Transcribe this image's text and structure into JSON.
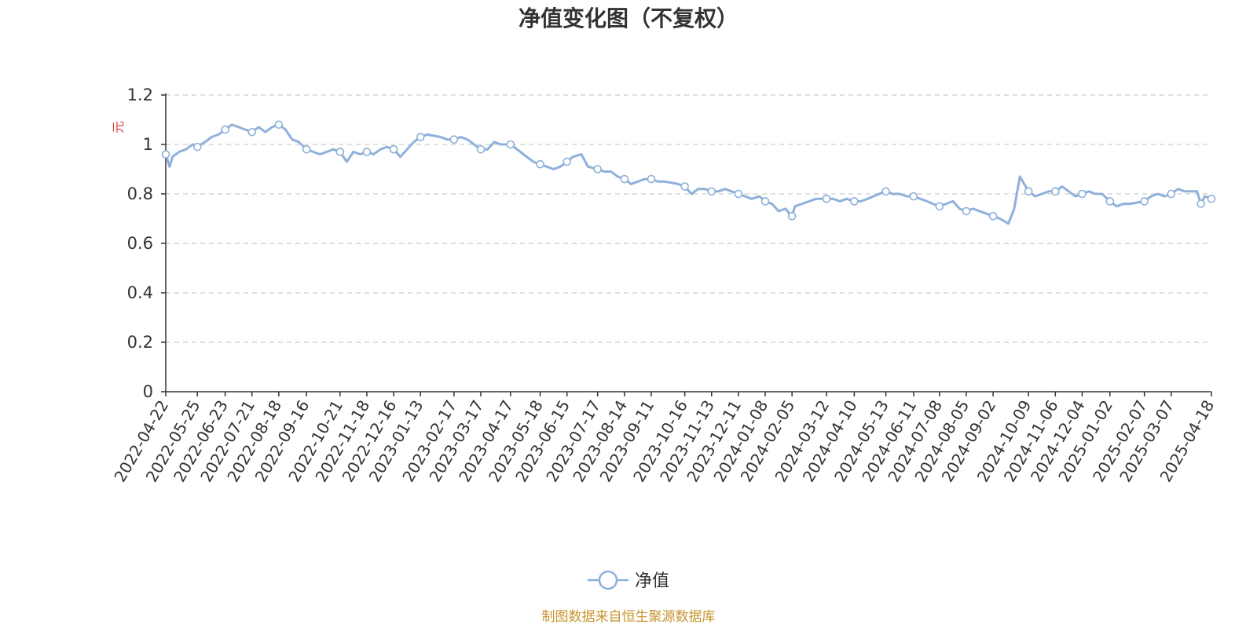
{
  "colors": {
    "line": "#8eb0db",
    "marker_fill": "#ffffff",
    "axis": "#333333",
    "grid": "#cccccc",
    "unit": "#e03c3c",
    "source": "#c8962e"
  },
  "chart_data": {
    "type": "line",
    "title": "净值变化图（不复权）",
    "ylabel": "元",
    "ylim": [
      0,
      1.2
    ],
    "yticks": [
      "0",
      "0.2",
      "0.4",
      "0.6",
      "0.8",
      "1",
      "1.2"
    ],
    "grid": true,
    "legend_position": "bottom-center",
    "xlim": [
      "2022-04-22",
      "2025-04-18"
    ],
    "x_ticks": [
      "2022-04-22",
      "2022-05-25",
      "2022-06-23",
      "2022-07-21",
      "2022-08-18",
      "2022-09-16",
      "2022-10-21",
      "2022-11-18",
      "2022-12-16",
      "2023-01-13",
      "2023-02-17",
      "2023-03-17",
      "2023-04-17",
      "2023-05-18",
      "2023-06-15",
      "2023-07-17",
      "2023-08-14",
      "2023-09-11",
      "2023-10-16",
      "2023-11-13",
      "2023-12-11",
      "2024-01-08",
      "2024-02-05",
      "2024-03-12",
      "2024-04-10",
      "2024-05-13",
      "2024-06-11",
      "2024-07-08",
      "2024-08-05",
      "2024-09-02",
      "2024-10-09",
      "2024-11-06",
      "2024-12-04",
      "2025-01-02",
      "2025-02-07",
      "2025-03-07",
      "2025-04-18"
    ],
    "series": [
      {
        "name": "净值",
        "points": [
          {
            "x": "2022-04-22",
            "y": 0.96
          },
          {
            "x": "2022-04-26",
            "y": 0.91
          },
          {
            "x": "2022-04-29",
            "y": 0.95
          },
          {
            "x": "2022-05-06",
            "y": 0.97
          },
          {
            "x": "2022-05-13",
            "y": 0.98
          },
          {
            "x": "2022-05-20",
            "y": 1.0
          },
          {
            "x": "2022-05-25",
            "y": 0.99
          },
          {
            "x": "2022-06-02",
            "y": 1.01
          },
          {
            "x": "2022-06-09",
            "y": 1.03
          },
          {
            "x": "2022-06-16",
            "y": 1.04
          },
          {
            "x": "2022-06-23",
            "y": 1.06
          },
          {
            "x": "2022-06-30",
            "y": 1.08
          },
          {
            "x": "2022-07-07",
            "y": 1.07
          },
          {
            "x": "2022-07-14",
            "y": 1.06
          },
          {
            "x": "2022-07-21",
            "y": 1.05
          },
          {
            "x": "2022-07-28",
            "y": 1.07
          },
          {
            "x": "2022-08-04",
            "y": 1.05
          },
          {
            "x": "2022-08-11",
            "y": 1.07
          },
          {
            "x": "2022-08-18",
            "y": 1.08
          },
          {
            "x": "2022-08-25",
            "y": 1.06
          },
          {
            "x": "2022-09-01",
            "y": 1.02
          },
          {
            "x": "2022-09-08",
            "y": 1.01
          },
          {
            "x": "2022-09-16",
            "y": 0.98
          },
          {
            "x": "2022-09-23",
            "y": 0.97
          },
          {
            "x": "2022-09-30",
            "y": 0.96
          },
          {
            "x": "2022-10-14",
            "y": 0.98
          },
          {
            "x": "2022-10-21",
            "y": 0.97
          },
          {
            "x": "2022-10-28",
            "y": 0.93
          },
          {
            "x": "2022-11-04",
            "y": 0.97
          },
          {
            "x": "2022-11-11",
            "y": 0.96
          },
          {
            "x": "2022-11-18",
            "y": 0.97
          },
          {
            "x": "2022-11-25",
            "y": 0.96
          },
          {
            "x": "2022-12-02",
            "y": 0.98
          },
          {
            "x": "2022-12-09",
            "y": 0.99
          },
          {
            "x": "2022-12-16",
            "y": 0.98
          },
          {
            "x": "2022-12-23",
            "y": 0.95
          },
          {
            "x": "2022-12-30",
            "y": 0.98
          },
          {
            "x": "2023-01-06",
            "y": 1.01
          },
          {
            "x": "2023-01-13",
            "y": 1.03
          },
          {
            "x": "2023-01-20",
            "y": 1.04
          },
          {
            "x": "2023-02-03",
            "y": 1.03
          },
          {
            "x": "2023-02-10",
            "y": 1.02
          },
          {
            "x": "2023-02-17",
            "y": 1.02
          },
          {
            "x": "2023-02-24",
            "y": 1.03
          },
          {
            "x": "2023-03-03",
            "y": 1.02
          },
          {
            "x": "2023-03-10",
            "y": 1.0
          },
          {
            "x": "2023-03-17",
            "y": 0.98
          },
          {
            "x": "2023-03-24",
            "y": 0.98
          },
          {
            "x": "2023-03-31",
            "y": 1.01
          },
          {
            "x": "2023-04-07",
            "y": 1.0
          },
          {
            "x": "2023-04-17",
            "y": 1.0
          },
          {
            "x": "2023-04-24",
            "y": 0.98
          },
          {
            "x": "2023-05-04",
            "y": 0.95
          },
          {
            "x": "2023-05-11",
            "y": 0.93
          },
          {
            "x": "2023-05-18",
            "y": 0.92
          },
          {
            "x": "2023-05-25",
            "y": 0.91
          },
          {
            "x": "2023-06-01",
            "y": 0.9
          },
          {
            "x": "2023-06-08",
            "y": 0.91
          },
          {
            "x": "2023-06-15",
            "y": 0.93
          },
          {
            "x": "2023-06-21",
            "y": 0.95
          },
          {
            "x": "2023-06-30",
            "y": 0.96
          },
          {
            "x": "2023-07-07",
            "y": 0.91
          },
          {
            "x": "2023-07-17",
            "y": 0.9
          },
          {
            "x": "2023-07-24",
            "y": 0.89
          },
          {
            "x": "2023-07-31",
            "y": 0.89
          },
          {
            "x": "2023-08-07",
            "y": 0.87
          },
          {
            "x": "2023-08-14",
            "y": 0.86
          },
          {
            "x": "2023-08-21",
            "y": 0.84
          },
          {
            "x": "2023-08-28",
            "y": 0.85
          },
          {
            "x": "2023-09-04",
            "y": 0.86
          },
          {
            "x": "2023-09-11",
            "y": 0.86
          },
          {
            "x": "2023-09-18",
            "y": 0.85
          },
          {
            "x": "2023-09-25",
            "y": 0.85
          },
          {
            "x": "2023-10-09",
            "y": 0.84
          },
          {
            "x": "2023-10-16",
            "y": 0.83
          },
          {
            "x": "2023-10-23",
            "y": 0.8
          },
          {
            "x": "2023-10-30",
            "y": 0.82
          },
          {
            "x": "2023-11-06",
            "y": 0.82
          },
          {
            "x": "2023-11-13",
            "y": 0.81
          },
          {
            "x": "2023-11-20",
            "y": 0.81
          },
          {
            "x": "2023-11-27",
            "y": 0.82
          },
          {
            "x": "2023-12-04",
            "y": 0.81
          },
          {
            "x": "2023-12-11",
            "y": 0.8
          },
          {
            "x": "2023-12-18",
            "y": 0.79
          },
          {
            "x": "2023-12-25",
            "y": 0.78
          },
          {
            "x": "2024-01-02",
            "y": 0.79
          },
          {
            "x": "2024-01-08",
            "y": 0.77
          },
          {
            "x": "2024-01-15",
            "y": 0.76
          },
          {
            "x": "2024-01-22",
            "y": 0.73
          },
          {
            "x": "2024-01-29",
            "y": 0.74
          },
          {
            "x": "2024-02-05",
            "y": 0.71
          },
          {
            "x": "2024-02-08",
            "y": 0.75
          },
          {
            "x": "2024-02-23",
            "y": 0.77
          },
          {
            "x": "2024-03-01",
            "y": 0.78
          },
          {
            "x": "2024-03-12",
            "y": 0.78
          },
          {
            "x": "2024-03-19",
            "y": 0.78
          },
          {
            "x": "2024-03-26",
            "y": 0.77
          },
          {
            "x": "2024-04-02",
            "y": 0.78
          },
          {
            "x": "2024-04-10",
            "y": 0.77
          },
          {
            "x": "2024-04-17",
            "y": 0.77
          },
          {
            "x": "2024-04-24",
            "y": 0.78
          },
          {
            "x": "2024-05-06",
            "y": 0.8
          },
          {
            "x": "2024-05-13",
            "y": 0.81
          },
          {
            "x": "2024-05-20",
            "y": 0.8
          },
          {
            "x": "2024-05-27",
            "y": 0.8
          },
          {
            "x": "2024-06-04",
            "y": 0.79
          },
          {
            "x": "2024-06-11",
            "y": 0.79
          },
          {
            "x": "2024-06-18",
            "y": 0.78
          },
          {
            "x": "2024-06-25",
            "y": 0.77
          },
          {
            "x": "2024-07-01",
            "y": 0.76
          },
          {
            "x": "2024-07-08",
            "y": 0.75
          },
          {
            "x": "2024-07-15",
            "y": 0.76
          },
          {
            "x": "2024-07-22",
            "y": 0.77
          },
          {
            "x": "2024-07-29",
            "y": 0.74
          },
          {
            "x": "2024-08-05",
            "y": 0.73
          },
          {
            "x": "2024-08-12",
            "y": 0.74
          },
          {
            "x": "2024-08-19",
            "y": 0.73
          },
          {
            "x": "2024-08-26",
            "y": 0.72
          },
          {
            "x": "2024-09-02",
            "y": 0.71
          },
          {
            "x": "2024-09-09",
            "y": 0.7
          },
          {
            "x": "2024-09-18",
            "y": 0.68
          },
          {
            "x": "2024-09-24",
            "y": 0.74
          },
          {
            "x": "2024-09-30",
            "y": 0.87
          },
          {
            "x": "2024-10-09",
            "y": 0.81
          },
          {
            "x": "2024-10-16",
            "y": 0.79
          },
          {
            "x": "2024-10-23",
            "y": 0.8
          },
          {
            "x": "2024-10-30",
            "y": 0.81
          },
          {
            "x": "2024-11-06",
            "y": 0.81
          },
          {
            "x": "2024-11-13",
            "y": 0.83
          },
          {
            "x": "2024-11-20",
            "y": 0.81
          },
          {
            "x": "2024-11-27",
            "y": 0.79
          },
          {
            "x": "2024-12-04",
            "y": 0.8
          },
          {
            "x": "2024-12-11",
            "y": 0.81
          },
          {
            "x": "2024-12-18",
            "y": 0.8
          },
          {
            "x": "2024-12-25",
            "y": 0.8
          },
          {
            "x": "2025-01-02",
            "y": 0.77
          },
          {
            "x": "2025-01-09",
            "y": 0.75
          },
          {
            "x": "2025-01-16",
            "y": 0.76
          },
          {
            "x": "2025-01-23",
            "y": 0.76
          },
          {
            "x": "2025-02-07",
            "y": 0.77
          },
          {
            "x": "2025-02-14",
            "y": 0.79
          },
          {
            "x": "2025-02-21",
            "y": 0.8
          },
          {
            "x": "2025-02-28",
            "y": 0.79
          },
          {
            "x": "2025-03-07",
            "y": 0.8
          },
          {
            "x": "2025-03-14",
            "y": 0.82
          },
          {
            "x": "2025-03-21",
            "y": 0.81
          },
          {
            "x": "2025-03-28",
            "y": 0.81
          },
          {
            "x": "2025-04-03",
            "y": 0.81
          },
          {
            "x": "2025-04-07",
            "y": 0.76
          },
          {
            "x": "2025-04-11",
            "y": 0.79
          },
          {
            "x": "2025-04-18",
            "y": 0.78
          }
        ],
        "markers": [
          {
            "x": "2022-04-22",
            "y": 0.96
          },
          {
            "x": "2022-05-25",
            "y": 0.99
          },
          {
            "x": "2022-06-23",
            "y": 1.06
          },
          {
            "x": "2022-07-21",
            "y": 1.05
          },
          {
            "x": "2022-08-18",
            "y": 1.08
          },
          {
            "x": "2022-09-16",
            "y": 0.98
          },
          {
            "x": "2022-10-21",
            "y": 0.97
          },
          {
            "x": "2022-11-18",
            "y": 0.97
          },
          {
            "x": "2022-12-16",
            "y": 0.98
          },
          {
            "x": "2023-01-13",
            "y": 1.03
          },
          {
            "x": "2023-02-17",
            "y": 1.02
          },
          {
            "x": "2023-03-17",
            "y": 0.98
          },
          {
            "x": "2023-04-17",
            "y": 1.0
          },
          {
            "x": "2023-05-18",
            "y": 0.92
          },
          {
            "x": "2023-06-15",
            "y": 0.93
          },
          {
            "x": "2023-07-17",
            "y": 0.9
          },
          {
            "x": "2023-08-14",
            "y": 0.86
          },
          {
            "x": "2023-09-11",
            "y": 0.86
          },
          {
            "x": "2023-10-16",
            "y": 0.83
          },
          {
            "x": "2023-11-13",
            "y": 0.81
          },
          {
            "x": "2023-12-11",
            "y": 0.8
          },
          {
            "x": "2024-01-08",
            "y": 0.77
          },
          {
            "x": "2024-02-05",
            "y": 0.71
          },
          {
            "x": "2024-03-12",
            "y": 0.78
          },
          {
            "x": "2024-04-10",
            "y": 0.77
          },
          {
            "x": "2024-05-13",
            "y": 0.81
          },
          {
            "x": "2024-06-11",
            "y": 0.79
          },
          {
            "x": "2024-07-08",
            "y": 0.75
          },
          {
            "x": "2024-08-05",
            "y": 0.73
          },
          {
            "x": "2024-09-02",
            "y": 0.71
          },
          {
            "x": "2024-10-09",
            "y": 0.81
          },
          {
            "x": "2024-11-06",
            "y": 0.81
          },
          {
            "x": "2024-12-04",
            "y": 0.8
          },
          {
            "x": "2025-01-02",
            "y": 0.77
          },
          {
            "x": "2025-02-07",
            "y": 0.77
          },
          {
            "x": "2025-03-07",
            "y": 0.8
          },
          {
            "x": "2025-04-07",
            "y": 0.76
          },
          {
            "x": "2025-04-18",
            "y": 0.78
          }
        ]
      }
    ]
  },
  "footer": {
    "source": "制图数据来自恒生聚源数据库"
  }
}
